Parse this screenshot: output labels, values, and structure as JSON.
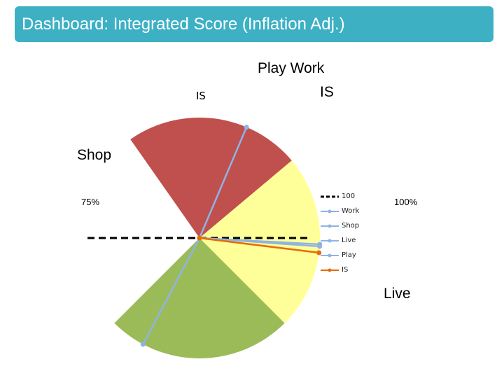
{
  "header": {
    "title": "Dashboard: Integrated Score (Inflation Adj.)"
  },
  "labels": {
    "play_work": "Play Work",
    "is_top": "IS",
    "is_left": "IS",
    "shop": "Shop",
    "pct_75": "75%",
    "pct_100": "100%",
    "live": "Live"
  },
  "colors": {
    "header_bg": "#3db0c4",
    "red_zone": "#c0504d",
    "yellow_zone": "#ffff99",
    "green_zone": "#9bbb59",
    "series_blue": "#8eb4e3",
    "series_is": "#e46c0a",
    "reference": "#000000"
  },
  "chart_data": {
    "type": "gauge",
    "zones": [
      {
        "color": "red",
        "from_deg": 55,
        "to_deg": 140
      },
      {
        "color": "yellow",
        "from_deg": 140,
        "to_deg": 225
      },
      {
        "color": "green",
        "from_deg": 225,
        "to_deg": 315
      }
    ],
    "series": [
      {
        "name": "100",
        "type": "reference",
        "angle_deg": 90,
        "style": "dashed"
      },
      {
        "name": "Work",
        "angle_deg": 184
      },
      {
        "name": "Shop",
        "angle_deg": 113
      },
      {
        "name": "Live",
        "angle_deg": 298
      },
      {
        "name": "Play",
        "angle_deg": 183
      },
      {
        "name": "IS",
        "angle_deg": 187
      }
    ],
    "legend": [
      "100",
      "Work",
      "Shop",
      "Live",
      "Play",
      "IS"
    ],
    "legend_position": "right"
  }
}
